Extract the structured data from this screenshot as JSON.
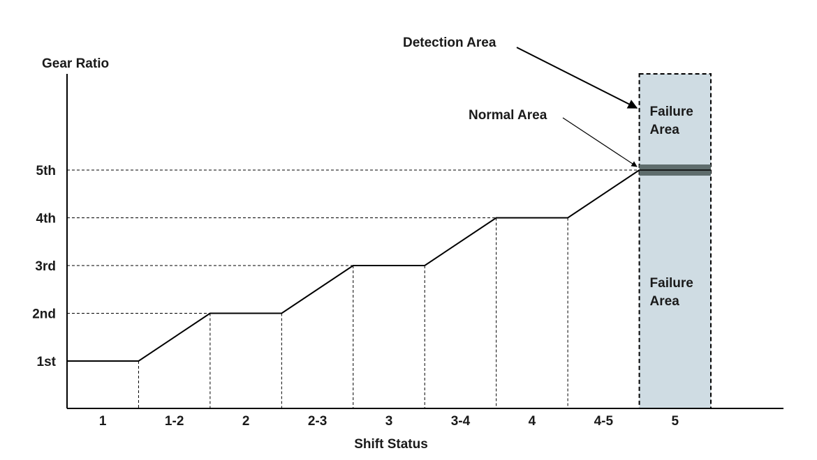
{
  "diagram": {
    "y_axis_label": "Gear Ratio",
    "x_axis_label": "Shift Status",
    "y_levels": [
      {
        "id": "1st",
        "label": "1st",
        "rank": 1
      },
      {
        "id": "2nd",
        "label": "2nd",
        "rank": 2
      },
      {
        "id": "3rd",
        "label": "3rd",
        "rank": 3
      },
      {
        "id": "4th",
        "label": "4th",
        "rank": 4
      },
      {
        "id": "5th",
        "label": "5th",
        "rank": 5
      }
    ],
    "x_states": [
      "1",
      "1-2",
      "2",
      "2-3",
      "3",
      "3-4",
      "4",
      "4-5",
      "5"
    ],
    "shift_profile": [
      {
        "state": "1",
        "from": 1,
        "to": 1
      },
      {
        "state": "1-2",
        "from": 1,
        "to": 2
      },
      {
        "state": "2",
        "from": 2,
        "to": 2
      },
      {
        "state": "2-3",
        "from": 2,
        "to": 3
      },
      {
        "state": "3",
        "from": 3,
        "to": 3
      },
      {
        "state": "3-4",
        "from": 3,
        "to": 4
      },
      {
        "state": "4",
        "from": 4,
        "to": 4
      },
      {
        "state": "4-5",
        "from": 4,
        "to": 5
      }
    ],
    "detection_area": {
      "state": "5",
      "label": "Detection Area",
      "fill_color": "#cfdce3",
      "border_color": "#000000",
      "band_color": "#5f6d6d",
      "upper_failure_label_line1": "Failure",
      "upper_failure_label_line2": "Area",
      "lower_failure_label_line1": "Failure",
      "lower_failure_label_line2": "Area"
    },
    "normal_area": {
      "label": "Normal Area",
      "level": 5
    }
  }
}
